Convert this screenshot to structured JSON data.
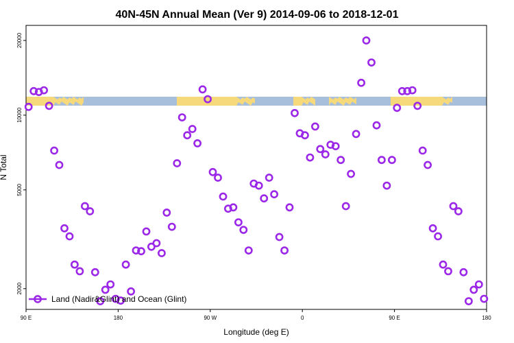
{
  "chart_data": {
    "type": "scatter",
    "title": "40N-45N Annual Mean (Ver 9)   2014-09-06 to 2018-12-01",
    "xlabel": "Longitude (deg E)",
    "ylabel": "N Total",
    "y_scale": "log",
    "x_unwrapped_range": [
      90,
      540
    ],
    "ylim": [
      1650,
      23000
    ],
    "x_ticks": [
      {
        "value": 90,
        "label": "90 E"
      },
      {
        "value": 180,
        "label": "180"
      },
      {
        "value": 270,
        "label": "90 W"
      },
      {
        "value": 360,
        "label": "0"
      },
      {
        "value": 450,
        "label": "90 E"
      },
      {
        "value": 540,
        "label": "180"
      }
    ],
    "y_ticks": [
      {
        "value": 2000,
        "label": "2000"
      },
      {
        "value": 5000,
        "label": "5000"
      },
      {
        "value": 10000,
        "label": "10000"
      },
      {
        "value": 20000,
        "label": "20000"
      }
    ],
    "series": [
      {
        "name": "Land (Nadir&Glint) and Ocean (Glint)",
        "color": "#9b27e8",
        "marker": "open-circle",
        "x": [
          92.5,
          97.5,
          102.5,
          107.5,
          112.5,
          117.5,
          122.5,
          127.5,
          132.5,
          137.5,
          142.5,
          147.5,
          152.5,
          157.5,
          162.5,
          167.5,
          172.5,
          177.5,
          182.5,
          187.5,
          192.5,
          197.5,
          202.5,
          207.5,
          212.5,
          217.5,
          222.5,
          227.5,
          232.5,
          237.5,
          242.5,
          247.5,
          252.5,
          257.5,
          262.5,
          267.5,
          272.5,
          277.5,
          282.5,
          287.5,
          292.5,
          297.5,
          302.5,
          307.5,
          312.5,
          317.5,
          322.5,
          327.5,
          332.5,
          337.5,
          342.5,
          347.5,
          352.5,
          357.5,
          362.5,
          367.5,
          372.5,
          377.5,
          382.5,
          387.5,
          392.5,
          397.5,
          402.5,
          407.5,
          412.5,
          417.5,
          422.5,
          427.5,
          432.5,
          437.5,
          442.5,
          447.5,
          452.5,
          457.5,
          462.5,
          467.5,
          472.5,
          477.5,
          482.5,
          487.5,
          492.5,
          497.5,
          502.5,
          507.5,
          512.5,
          517.5,
          522.5,
          527.5,
          532.5,
          537.5
        ],
        "values": [
          10800,
          12500,
          12400,
          12600,
          10900,
          7200,
          6300,
          3500,
          3250,
          2500,
          2350,
          4300,
          4100,
          2330,
          1780,
          1980,
          2080,
          1820,
          1790,
          2500,
          1950,
          2850,
          2830,
          3400,
          2950,
          3050,
          2780,
          4050,
          3550,
          6400,
          9800,
          8300,
          8800,
          7700,
          12700,
          11600,
          5900,
          5600,
          4700,
          4200,
          4250,
          3700,
          3450,
          2850,
          5300,
          5200,
          4620,
          5600,
          4800,
          3230,
          2850,
          4250,
          10200,
          8450,
          8300,
          6750,
          9000,
          7300,
          6950,
          7600,
          7500,
          6600,
          4300,
          5800,
          8400,
          13500,
          20000,
          16300,
          9100,
          6600,
          5200,
          6600,
          10700,
          12500,
          12500,
          12600,
          10900,
          7200,
          6300,
          3500,
          3250,
          2500,
          2350,
          4300,
          4100,
          2330,
          1780,
          1980,
          2080,
          1820
        ]
      }
    ],
    "background_strip": {
      "description_colors": {
        "land": "#f5d97a",
        "ocean": "#a8bfdc"
      }
    },
    "legend": {
      "position": "bottom-left"
    }
  }
}
